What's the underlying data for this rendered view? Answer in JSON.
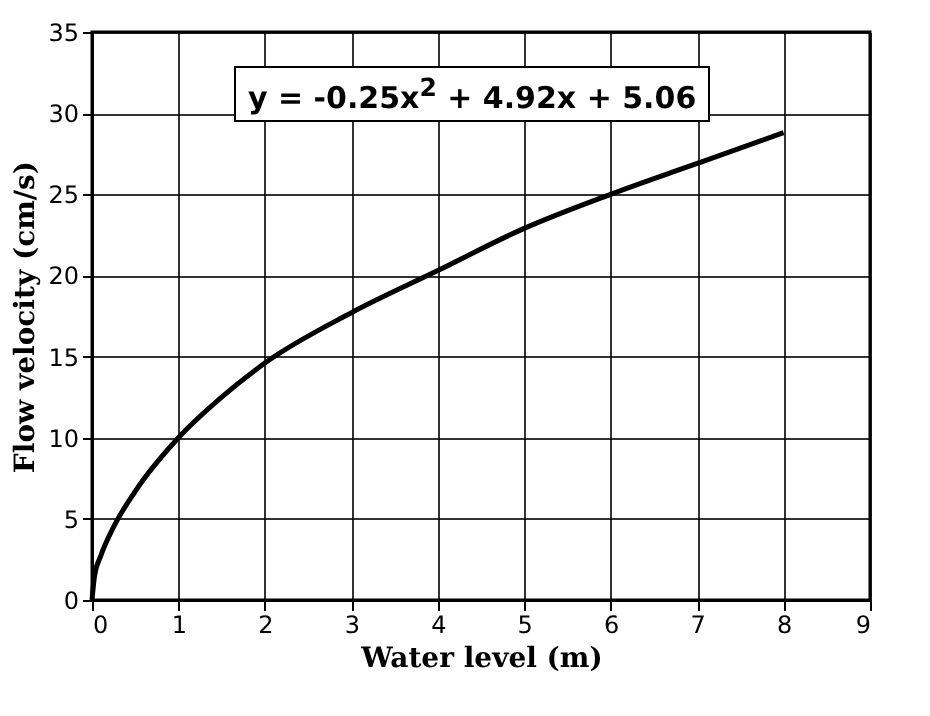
{
  "chart_data": {
    "type": "line",
    "xlabel": "Water level (m)",
    "ylabel": "Flow velocity (cm/s)",
    "x": [
      0,
      0.03,
      0.1,
      0.25,
      0.5,
      1,
      1.5,
      2,
      3,
      4,
      5,
      6,
      7,
      8
    ],
    "series": [
      {
        "color": "#000000",
        "values": [
          0,
          1.5,
          2.7,
          4.5,
          6.7,
          10,
          12.5,
          14.6,
          17.7,
          20.3,
          22.9,
          25,
          26.9,
          28.8
        ]
      }
    ],
    "xlim": [
      0,
      9
    ],
    "xticks": [
      0,
      1,
      2,
      3,
      4,
      5,
      6,
      7,
      8,
      9
    ],
    "ylim": [
      0,
      35
    ],
    "yticks": [
      0,
      5,
      10,
      15,
      20,
      25,
      30,
      35
    ],
    "grid": true,
    "marker": "none",
    "line_style": "solid",
    "annotations": [
      "y = -0.25x$^{2}$ + 4.92x + 5.06"
    ]
  }
}
